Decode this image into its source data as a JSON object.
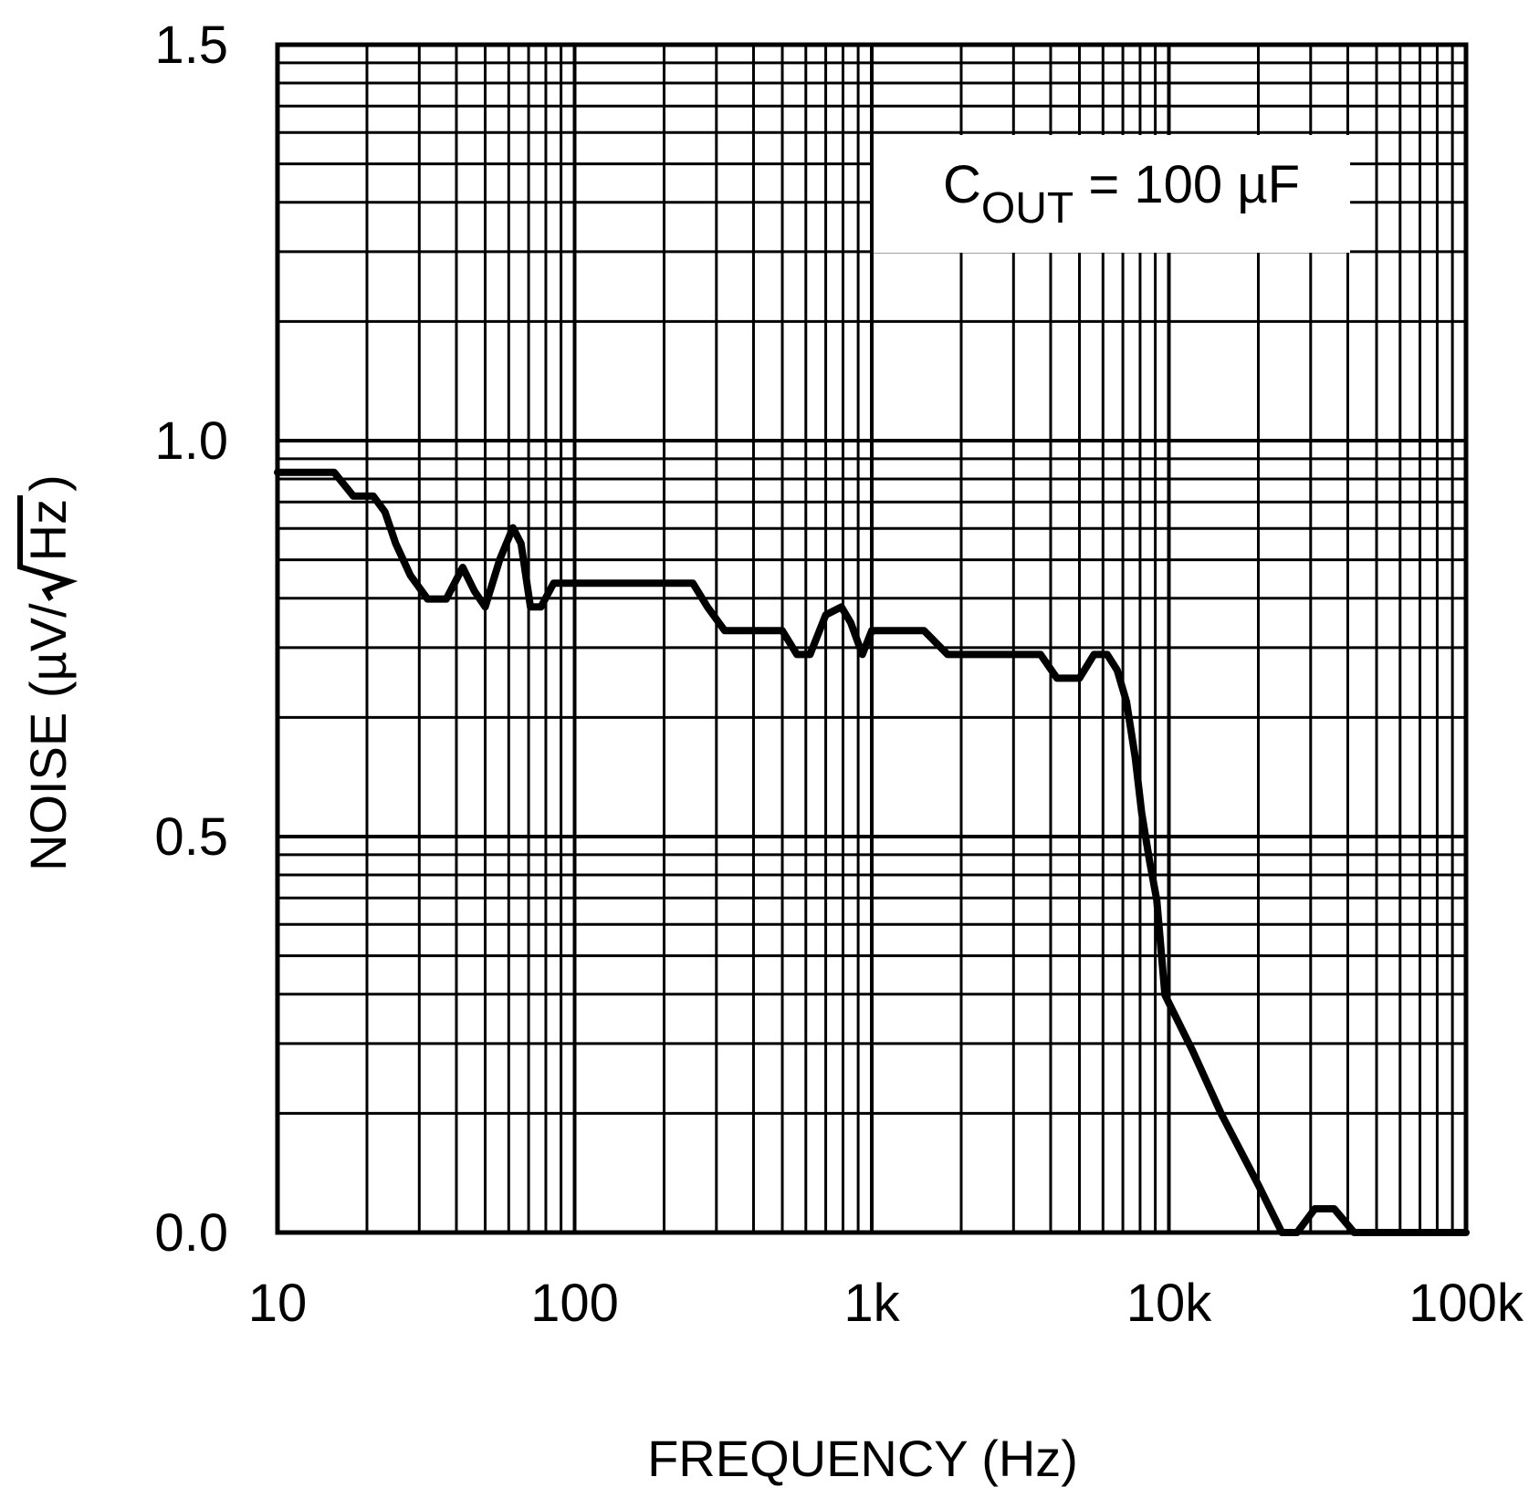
{
  "chart_data": {
    "type": "line",
    "title": "",
    "xlabel": "FREQUENCY (Hz)",
    "ylabel_main": "NOISE (",
    "ylabel_unit": "µV/",
    "ylabel_root": "Hz",
    "ylabel_close": ")",
    "xscale": "log",
    "xlim": [
      10,
      100000
    ],
    "ylim": [
      0.0,
      1.5
    ],
    "grid": true,
    "x_ticks": [
      {
        "value": 10,
        "label": "10"
      },
      {
        "value": 100,
        "label": "100"
      },
      {
        "value": 1000,
        "label": "1k"
      },
      {
        "value": 10000,
        "label": "10k"
      },
      {
        "value": 100000,
        "label": "100k"
      }
    ],
    "y_ticks": [
      {
        "value": 0.0,
        "label": "0.0"
      },
      {
        "value": 0.5,
        "label": "0.5"
      },
      {
        "value": 1.0,
        "label": "1.0"
      },
      {
        "value": 1.5,
        "label": "1.5"
      }
    ],
    "annotation": {
      "main": "C",
      "sub": "OUT",
      "rest": " = 100 µF",
      "placement": "top-right"
    },
    "series": [
      {
        "name": "COUT = 100 µF",
        "color": "#000000",
        "points": [
          [
            10,
            0.96
          ],
          [
            15.5,
            0.96
          ],
          [
            18,
            0.93
          ],
          [
            21,
            0.93
          ],
          [
            23,
            0.91
          ],
          [
            25,
            0.87
          ],
          [
            28,
            0.83
          ],
          [
            32,
            0.8
          ],
          [
            37,
            0.8
          ],
          [
            42,
            0.84
          ],
          [
            46,
            0.81
          ],
          [
            50,
            0.79
          ],
          [
            56,
            0.85
          ],
          [
            62,
            0.89
          ],
          [
            66,
            0.87
          ],
          [
            71,
            0.79
          ],
          [
            77,
            0.79
          ],
          [
            85,
            0.82
          ],
          [
            100,
            0.82
          ],
          [
            150,
            0.82
          ],
          [
            250,
            0.82
          ],
          [
            280,
            0.79
          ],
          [
            320,
            0.76
          ],
          [
            400,
            0.76
          ],
          [
            500,
            0.76
          ],
          [
            560,
            0.73
          ],
          [
            620,
            0.73
          ],
          [
            700,
            0.78
          ],
          [
            790,
            0.79
          ],
          [
            850,
            0.77
          ],
          [
            930,
            0.73
          ],
          [
            1000,
            0.76
          ],
          [
            1300,
            0.76
          ],
          [
            1500,
            0.76
          ],
          [
            1800,
            0.73
          ],
          [
            2500,
            0.73
          ],
          [
            3200,
            0.73
          ],
          [
            3700,
            0.73
          ],
          [
            4200,
            0.7
          ],
          [
            5000,
            0.7
          ],
          [
            5600,
            0.73
          ],
          [
            6200,
            0.73
          ],
          [
            6700,
            0.71
          ],
          [
            7200,
            0.67
          ],
          [
            7700,
            0.6
          ],
          [
            8100,
            0.53
          ],
          [
            8600,
            0.47
          ],
          [
            9100,
            0.42
          ],
          [
            9700,
            0.3
          ],
          [
            12000,
            0.23
          ],
          [
            15000,
            0.15
          ],
          [
            20000,
            0.06
          ],
          [
            24000,
            0.0
          ],
          [
            27000,
            0.0
          ],
          [
            31000,
            0.03
          ],
          [
            36000,
            0.03
          ],
          [
            42000,
            0.0
          ],
          [
            60000,
            0.0
          ],
          [
            100000,
            0.0
          ]
        ]
      }
    ]
  }
}
